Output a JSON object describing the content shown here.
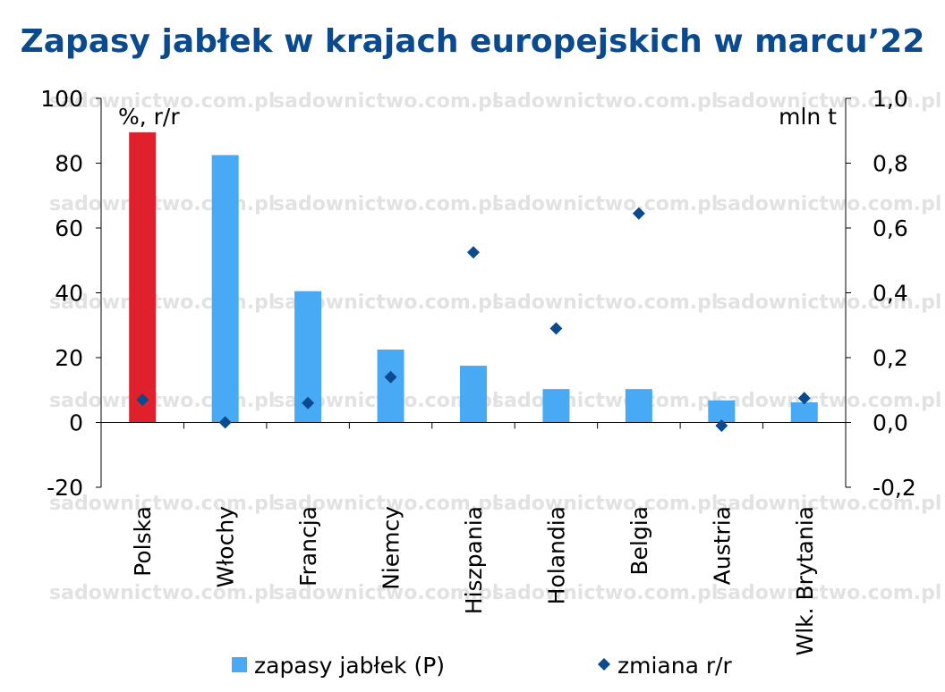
{
  "watermark": "sadownictwo.com.pl",
  "chart_data": {
    "type": "bar",
    "title": "Zapasy jabłek w krajach europejskich w marcu’22",
    "categories": [
      "Polska",
      "Włochy",
      "Francja",
      "Niemcy",
      "Hiszpania",
      "Holandia",
      "Belgia",
      "Austria",
      "Wlk. Brytania"
    ],
    "left_axis": {
      "label": "%, r/r",
      "range": [
        -20,
        100
      ],
      "ticks": [
        "-20",
        "0",
        "20",
        "40",
        "60",
        "80",
        "100"
      ],
      "tick_values": [
        -20,
        0,
        20,
        40,
        60,
        80,
        100
      ]
    },
    "right_axis": {
      "label": "mln t",
      "range": [
        -0.2,
        1.0
      ],
      "ticks": [
        "-0,2",
        "0,0",
        "0,2",
        "0,4",
        "0,6",
        "0,8",
        "1,0"
      ],
      "tick_values": [
        -0.2,
        0.0,
        0.2,
        0.4,
        0.6,
        0.8,
        1.0
      ]
    },
    "series": [
      {
        "name": "zapasy jabłek (P)",
        "type": "bar",
        "axis": "right",
        "color": "#48a9f5",
        "highlight_color": "#e0202b",
        "highlight_index": 0,
        "values": [
          0.895,
          0.825,
          0.405,
          0.225,
          0.175,
          0.103,
          0.103,
          0.068,
          0.062
        ]
      },
      {
        "name": "zmiana r/r",
        "type": "scatter",
        "axis": "left",
        "marker": "diamond",
        "color": "#0b4a8f",
        "values": [
          7,
          0,
          6,
          14,
          52.5,
          29,
          64.5,
          -1,
          7.5
        ]
      }
    ],
    "grid": false,
    "legend_position": "bottom"
  }
}
